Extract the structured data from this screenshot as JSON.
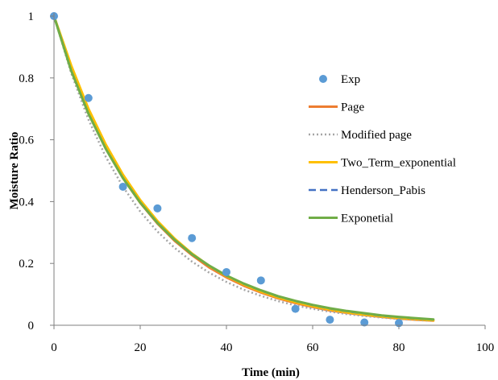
{
  "chart_data": {
    "type": "line",
    "title": "",
    "xlabel": "Time (min)",
    "ylabel": "Moisture Ratio",
    "xlim": [
      0,
      100
    ],
    "ylim": [
      0,
      1
    ],
    "x_ticks": [
      "0",
      "20",
      "40",
      "60",
      "80",
      "100"
    ],
    "y_ticks": [
      "0",
      "0.2",
      "0.4",
      "0.6",
      "0.8",
      "1"
    ],
    "grid": false,
    "legend_position": "right",
    "x": [
      0,
      4,
      8,
      12,
      16,
      20,
      24,
      28,
      32,
      36,
      40,
      44,
      48,
      52,
      56,
      60,
      64,
      68,
      72,
      76,
      80,
      84,
      88
    ],
    "experimental": {
      "name": "Exp",
      "color": "#5B9BD5",
      "x": [
        0,
        8,
        16,
        24,
        32,
        40,
        48,
        56,
        64,
        72,
        80
      ],
      "y": [
        1.0,
        0.735,
        0.448,
        0.378,
        0.282,
        0.172,
        0.145,
        0.053,
        0.018,
        0.009,
        0.007
      ]
    },
    "series": [
      {
        "name": "Page",
        "color": "#ED7D31",
        "style": "solid",
        "values": [
          1.0,
          0.83,
          0.687,
          0.572,
          0.476,
          0.396,
          0.329,
          0.273,
          0.227,
          0.187,
          0.155,
          0.128,
          0.106,
          0.087,
          0.072,
          0.059,
          0.048,
          0.04,
          0.033,
          0.027,
          0.022,
          0.018,
          0.015
        ]
      },
      {
        "name": "Modified page",
        "color": "#A5A5A5",
        "style": "dotted",
        "values": [
          1.0,
          0.815,
          0.665,
          0.545,
          0.448,
          0.368,
          0.303,
          0.25,
          0.206,
          0.17,
          0.14,
          0.115,
          0.095,
          0.078,
          0.064,
          0.053,
          0.044,
          0.036,
          0.03,
          0.025,
          0.02,
          0.017,
          0.014
        ]
      },
      {
        "name": "Two_Term_exponential",
        "color": "#FFC000",
        "style": "solid",
        "values": [
          1.0,
          0.84,
          0.7,
          0.585,
          0.487,
          0.405,
          0.337,
          0.28,
          0.232,
          0.192,
          0.159,
          0.132,
          0.109,
          0.09,
          0.075,
          0.062,
          0.051,
          0.042,
          0.035,
          0.029,
          0.024,
          0.02,
          0.016
        ]
      },
      {
        "name": "Henderson_Pabis",
        "color": "#4472C4",
        "style": "dashed",
        "values": [
          1.0,
          0.823,
          0.684,
          0.571,
          0.476,
          0.397,
          0.331,
          0.276,
          0.23,
          0.192,
          0.16,
          0.134,
          0.112,
          0.093,
          0.078,
          0.065,
          0.054,
          0.045,
          0.038,
          0.031,
          0.026,
          0.022,
          0.018
        ]
      },
      {
        "name": "Exponetial",
        "color": "#70AD47",
        "style": "solid",
        "values": [
          1.0,
          0.823,
          0.684,
          0.571,
          0.476,
          0.397,
          0.331,
          0.276,
          0.23,
          0.193,
          0.161,
          0.135,
          0.113,
          0.094,
          0.079,
          0.066,
          0.055,
          0.046,
          0.039,
          0.032,
          0.027,
          0.023,
          0.019
        ]
      }
    ]
  }
}
